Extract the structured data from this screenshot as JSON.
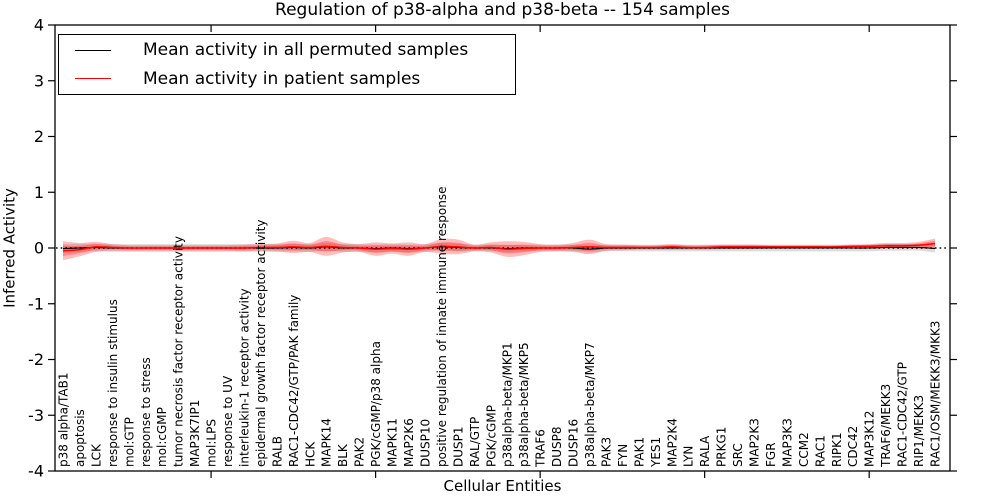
{
  "figure": {
    "title": "Regulation of p38-alpha and p38-beta -- 154 samples",
    "xlabel": "Cellular Entities",
    "ylabel": "Inferred Activity"
  },
  "legend": {
    "position": "upper left",
    "entries": [
      {
        "label": "Mean activity in all permuted samples",
        "color": "#000000"
      },
      {
        "label": "Mean activity in patient samples",
        "color": "#ff0000"
      }
    ]
  },
  "colors": {
    "patient_line": "#ff0000",
    "permuted_line": "#000000",
    "patient_band": "#ff0000",
    "permuted_band": "#909090",
    "zero_line": "#000000",
    "axis": "#000000",
    "background": "#ffffff"
  },
  "chart_data": {
    "type": "line",
    "title": "Regulation of p38-alpha and p38-beta -- 154 samples",
    "xlabel": "Cellular Entities",
    "ylabel": "Inferred Activity",
    "ylim": [
      -4,
      4
    ],
    "ytick_values": [
      -4,
      -3,
      -2,
      -1,
      0,
      1,
      2,
      3,
      4
    ],
    "ytick_labels": [
      "-4",
      "-3",
      "-2",
      "-1",
      "0",
      "1",
      "2",
      "3",
      "4"
    ],
    "xtick_numeric_positions": [
      10,
      20,
      30,
      40,
      50
    ],
    "grid": false,
    "legend_position": "upper left",
    "zero_line": {
      "y": 0,
      "style": "dotted",
      "color": "#000000"
    },
    "categories": [
      "p38 alpha/TAB1",
      "apoptosis",
      "LCK",
      "response to insulin stimulus",
      "mol:GTP",
      "response to stress",
      "mol:cGMP",
      "tumor necrosis factor receptor activity",
      "MAP3K7IP1",
      "mol:LPS",
      "response to UV",
      "interleukin-1 receptor activity",
      "epidermal growth factor receptor activity",
      "RALB",
      "RAC1-CDC42/GTP/PAK family",
      "HCK",
      "MAPK14",
      "BLK",
      "PAK2",
      "PGK/cGMP/p38 alpha",
      "MAPK11",
      "MAP2K6",
      "DUSP10",
      "positive regulation of innate immune response",
      "DUSP1",
      "RAL/GTP",
      "PGK/cGMP",
      "p38alpha-beta/MKP1",
      "p38alpha-beta/MKP5",
      "TRAF6",
      "DUSP8",
      "DUSP16",
      "p38alpha-beta/MKP7",
      "PAK3",
      "FYN",
      "PAK1",
      "YES1",
      "MAP2K4",
      "LYN",
      "RALA",
      "PRKG1",
      "SRC",
      "MAP2K3",
      "FGR",
      "MAP3K3",
      "CCM2",
      "RAC1",
      "RIPK1",
      "CDC42",
      "MAP3K12",
      "TRAF6/MEKK3",
      "RAC1-CDC42/GTP",
      "RIP1/MEKK3",
      "RAC1/OSM/MEKK3/MKK3"
    ],
    "series": [
      {
        "name": "Mean activity in all permuted samples",
        "color": "#000000",
        "values": [
          -0.01,
          0,
          0.01,
          0,
          0,
          0,
          0,
          0,
          0,
          0,
          0,
          0,
          0,
          0,
          0.01,
          0,
          0.02,
          0,
          0,
          -0.01,
          0,
          -0.01,
          0,
          0.02,
          0.01,
          0,
          0,
          -0.01,
          0,
          0,
          0,
          0,
          -0.02,
          0,
          0,
          0,
          0,
          0,
          0,
          0,
          0,
          0,
          0,
          0,
          0,
          0,
          0,
          0,
          0,
          0,
          0.01,
          0.01,
          0.01,
          -0.01
        ],
        "band_halfwidth": [
          0.08,
          0.07,
          0.07,
          0.07,
          0.07,
          0.07,
          0.07,
          0.07,
          0.07,
          0.07,
          0.07,
          0.07,
          0.07,
          0.07,
          0.07,
          0.07,
          0.07,
          0.07,
          0.07,
          0.07,
          0.07,
          0.07,
          0.07,
          0.07,
          0.07,
          0.06,
          0.06,
          0.06,
          0.06,
          0.06,
          0.06,
          0.06,
          0.06,
          0.06,
          0.06,
          0.06,
          0.06,
          0.06,
          0.06,
          0.06,
          0.06,
          0.06,
          0.06,
          0.06,
          0.06,
          0.06,
          0.06,
          0.06,
          0.06,
          0.06,
          0.06,
          0.06,
          0.06,
          0.07
        ]
      },
      {
        "name": "Mean activity in patient samples",
        "color": "#ff0000",
        "values": [
          -0.05,
          -0.03,
          0.02,
          0.01,
          0,
          0,
          0,
          0,
          0,
          0,
          0,
          0,
          0.01,
          0.01,
          0.02,
          0.01,
          0.03,
          0.01,
          0,
          -0.02,
          -0.01,
          -0.02,
          0,
          0.03,
          0.02,
          0,
          0.01,
          -0.02,
          -0.01,
          0,
          0,
          0.01,
          0.02,
          0.01,
          0.01,
          0.01,
          0.01,
          0.02,
          0.01,
          0.01,
          0.02,
          0.02,
          0.02,
          0.02,
          0.02,
          0.02,
          0.02,
          0.02,
          0.03,
          0.03,
          0.04,
          0.04,
          0.05,
          0.08
        ],
        "band_halfwidth": [
          0.17,
          0.12,
          0.09,
          0.06,
          0.05,
          0.05,
          0.05,
          0.05,
          0.05,
          0.05,
          0.05,
          0.06,
          0.06,
          0.07,
          0.11,
          0.08,
          0.17,
          0.09,
          0.07,
          0.12,
          0.09,
          0.12,
          0.07,
          0.13,
          0.13,
          0.06,
          0.09,
          0.14,
          0.12,
          0.07,
          0.06,
          0.08,
          0.13,
          0.06,
          0.05,
          0.04,
          0.04,
          0.05,
          0.04,
          0.04,
          0.04,
          0.04,
          0.04,
          0.03,
          0.03,
          0.03,
          0.03,
          0.03,
          0.03,
          0.04,
          0.05,
          0.05,
          0.06,
          0.09
        ]
      }
    ]
  }
}
